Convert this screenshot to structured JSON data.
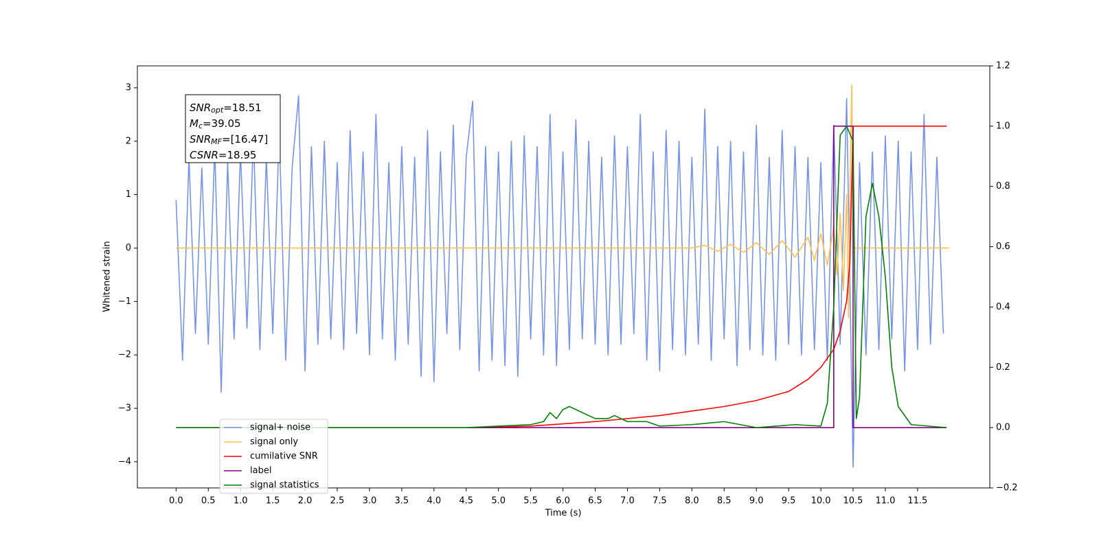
{
  "chart_data": {
    "type": "line",
    "xlabel": "Time (s)",
    "ylabel": "Whitened strain",
    "xlim": [
      -0.6,
      12.62
    ],
    "ylim": [
      -4.49,
      3.41
    ],
    "y2lim": [
      -0.2,
      1.2
    ],
    "xticks": [
      {
        "value": 0,
        "label": "0.0"
      },
      0.5,
      {
        "value": 1,
        "label": "1.0"
      },
      1.5,
      {
        "value": 2,
        "label": "2.0"
      },
      2.5,
      {
        "value": 3,
        "label": "3.0"
      },
      3.5,
      {
        "value": 4,
        "label": "4.0"
      },
      4.5,
      {
        "value": 5,
        "label": "5.0"
      },
      5.5,
      {
        "value": 6,
        "label": "6.0"
      },
      6.5,
      {
        "value": 7,
        "label": "7.0"
      },
      7.5,
      {
        "value": 8,
        "label": "8.0"
      },
      8.5,
      {
        "value": 9,
        "label": "9.0"
      },
      9.5,
      {
        "value": 10,
        "label": "10.0"
      },
      10.5,
      {
        "value": 11,
        "label": "11.0"
      },
      11.5
    ],
    "yticks": [
      {
        "value": -4,
        "label": "−4"
      },
      {
        "value": -3,
        "label": "−3"
      },
      {
        "value": -2,
        "label": "−2"
      },
      {
        "value": -1,
        "label": "−1"
      },
      0,
      1,
      2,
      3
    ],
    "y2ticks": [
      {
        "value": -0.2,
        "label": "−0.2"
      },
      {
        "value": 0,
        "label": "0.0"
      },
      0.2,
      0.4,
      0.6,
      0.8,
      {
        "value": 1,
        "label": "1.0"
      },
      1.2
    ],
    "annotation": [
      {
        "symbol": "SNR",
        "subscript": "opt",
        "text": "=18.51"
      },
      {
        "symbol": "M",
        "subscript": "c",
        "text": "=39.05"
      },
      {
        "symbol": "SNR",
        "subscript": "MF",
        "text": "=[16.47]"
      },
      {
        "symbol": "CSNR",
        "text": "=18.95"
      }
    ],
    "legend": "lower left",
    "series": [
      {
        "name": "signal+ noise",
        "color": "#7793e6",
        "x": [
          0,
          0.1,
          0.2,
          0.3,
          0.4,
          0.5,
          0.6,
          0.7,
          0.8,
          0.9,
          1,
          1.1,
          1.2,
          1.3,
          1.4,
          1.5,
          1.6,
          1.7,
          1.8,
          1.9,
          2,
          2.1,
          2.2,
          2.3,
          2.4,
          2.5,
          2.6,
          2.7,
          2.8,
          2.9,
          3,
          3.1,
          3.2,
          3.3,
          3.4,
          3.5,
          3.6,
          3.7,
          3.8,
          3.9,
          4,
          4.1,
          4.2,
          4.3,
          4.4,
          4.5,
          4.6,
          4.7,
          4.8,
          4.9,
          5,
          5.1,
          5.2,
          5.3,
          5.4,
          5.5,
          5.6,
          5.7,
          5.8,
          5.9,
          6,
          6.1,
          6.2,
          6.3,
          6.4,
          6.5,
          6.6,
          6.7,
          6.8,
          6.9,
          7,
          7.1,
          7.2,
          7.3,
          7.4,
          7.5,
          7.6,
          7.7,
          7.8,
          7.9,
          8,
          8.1,
          8.2,
          8.3,
          8.4,
          8.5,
          8.6,
          8.7,
          8.8,
          8.9,
          9,
          9.1,
          9.2,
          9.3,
          9.4,
          9.5,
          9.6,
          9.7,
          9.8,
          9.9,
          10,
          10.1,
          10.2,
          10.3,
          10.4,
          10.5,
          10.6,
          10.7,
          10.8,
          10.9,
          11,
          11.1,
          11.2,
          11.3,
          11.4,
          11.5,
          11.6,
          11.7,
          11.8,
          11.9
        ],
        "values": [
          0.9,
          -2.1,
          1.7,
          -1.6,
          1.5,
          -1.8,
          1.9,
          -2.7,
          1.6,
          -1.7,
          1.8,
          -1.5,
          2.1,
          -1.9,
          1.7,
          -1.6,
          2.2,
          -2.1,
          1.5,
          2.85,
          -2.3,
          1.9,
          -1.8,
          2.0,
          -1.7,
          1.6,
          -1.9,
          2.2,
          -1.6,
          1.8,
          -2.0,
          2.5,
          -1.7,
          1.6,
          -2.1,
          1.9,
          -1.8,
          1.7,
          -2.4,
          2.2,
          -2.5,
          1.8,
          -1.6,
          2.3,
          -1.9,
          1.7,
          2.75,
          -2.3,
          1.9,
          -2.1,
          1.8,
          -2.2,
          2.0,
          -2.4,
          2.1,
          -1.7,
          1.9,
          -2.0,
          2.5,
          -2.2,
          1.8,
          -1.9,
          2.4,
          -1.7,
          2.0,
          -1.8,
          1.7,
          -2.0,
          2.1,
          -1.8,
          1.9,
          -1.6,
          2.5,
          -2.1,
          1.8,
          -2.3,
          2.2,
          -1.9,
          2.0,
          -2.0,
          1.7,
          -1.8,
          2.6,
          -2.1,
          1.9,
          -1.7,
          2.0,
          -2.2,
          1.8,
          -1.9,
          2.3,
          -2.0,
          1.7,
          -2.1,
          2.2,
          -1.8,
          1.9,
          -2.0,
          1.7,
          -1.9,
          1.6,
          -2.1,
          2.3,
          -1.8,
          2.8,
          -4.1,
          1.6,
          -2.0,
          1.8,
          -1.9,
          2.1,
          -1.7,
          2.0,
          -2.3,
          1.8,
          -1.9,
          2.5,
          -1.8,
          1.7,
          -1.6
        ]
      },
      {
        "name": "signal only",
        "color": "#ffc04d",
        "x": [
          0,
          8.0,
          8.2,
          8.4,
          8.6,
          8.8,
          9.0,
          9.2,
          9.4,
          9.6,
          9.8,
          9.9,
          10.0,
          10.1,
          10.2,
          10.25,
          10.3,
          10.35,
          10.4,
          10.43,
          10.46,
          10.48,
          10.5,
          11.99
        ],
        "values": [
          0,
          0,
          0.05,
          -0.06,
          0.07,
          -0.08,
          0.1,
          -0.12,
          0.14,
          -0.17,
          0.2,
          -0.23,
          0.27,
          -0.32,
          0.4,
          -0.5,
          0.65,
          -0.8,
          1.0,
          -1.3,
          1.8,
          3.05,
          0,
          0
        ]
      },
      {
        "name": "cumilative SNR",
        "color": "#ff0000",
        "axis": "y2",
        "x": [
          4.7,
          5.5,
          6.5,
          7.5,
          8.5,
          9.0,
          9.5,
          9.8,
          10.0,
          10.2,
          10.3,
          10.4,
          10.45,
          10.5,
          11.95
        ],
        "values": [
          0,
          0.005,
          0.02,
          0.04,
          0.07,
          0.09,
          0.12,
          0.16,
          0.2,
          0.26,
          0.32,
          0.42,
          0.55,
          1.0,
          1.0
        ]
      },
      {
        "name": "label",
        "color": "#800080",
        "axis": "y2",
        "x": [
          0,
          10.2,
          10.2,
          10.5,
          10.5,
          11.95
        ],
        "values": [
          0,
          0,
          1,
          1,
          0,
          0
        ]
      },
      {
        "name": "signal statistics",
        "color": "#008000",
        "axis": "y2",
        "x": [
          0,
          4.5,
          5,
          5.5,
          5.7,
          5.8,
          5.9,
          6.0,
          6.1,
          6.3,
          6.5,
          6.7,
          6.8,
          7.0,
          7.3,
          7.5,
          8.0,
          8.5,
          9.0,
          9.6,
          10.0,
          10.1,
          10.2,
          10.3,
          10.4,
          10.5,
          10.55,
          10.6,
          10.7,
          10.8,
          10.9,
          11.0,
          11.1,
          11.2,
          11.4,
          11.95
        ],
        "values": [
          0,
          0,
          0.005,
          0.01,
          0.02,
          0.05,
          0.03,
          0.06,
          0.07,
          0.05,
          0.03,
          0.03,
          0.04,
          0.02,
          0.02,
          0.005,
          0.01,
          0.02,
          0,
          0.01,
          0.005,
          0.08,
          0.4,
          0.97,
          1.0,
          0.95,
          0.03,
          0.1,
          0.7,
          0.81,
          0.7,
          0.5,
          0.2,
          0.07,
          0.01,
          0
        ]
      }
    ]
  }
}
